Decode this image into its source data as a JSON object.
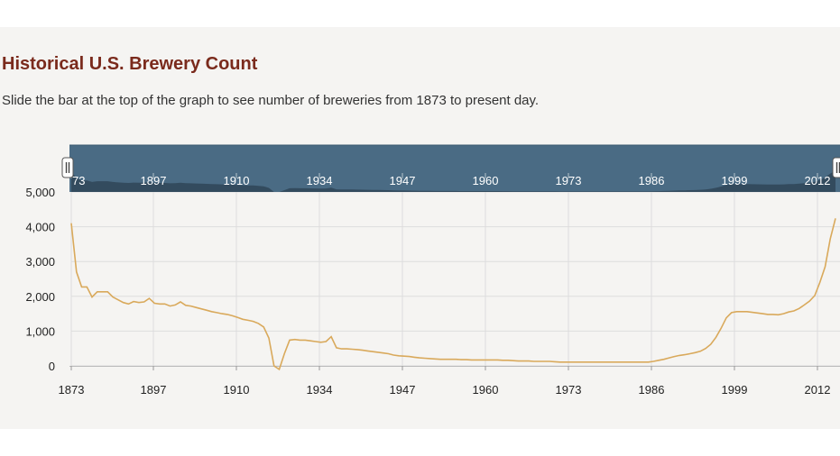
{
  "header": {
    "title": "Historical U.S. Brewery Count",
    "subtitle": "Slide the bar at the top of the graph to see number of breweries from 1873 to present day."
  },
  "navigator": {
    "tick_labels": [
      "73",
      "1897",
      "1910",
      "1934",
      "1947",
      "1960",
      "1973",
      "1986",
      "1999",
      "2012"
    ],
    "handle_icon": "grip-icon",
    "colors": {
      "band": "#4a6b84",
      "silhouette": "#334b5e"
    }
  },
  "chart_data": {
    "type": "line",
    "title": "Historical U.S. Brewery Count",
    "xlabel": "",
    "ylabel": "",
    "x_tick_labels": [
      "1873",
      "1897",
      "1910",
      "1934",
      "1947",
      "1960",
      "1973",
      "1986",
      "1999",
      "2012"
    ],
    "y_ticks": [
      0,
      1000,
      2000,
      3000,
      4000,
      5000
    ],
    "y_tick_labels": [
      "0",
      "1,000",
      "2,000",
      "3,000",
      "4,000",
      "5,000"
    ],
    "ylim": [
      0,
      5000
    ],
    "grid": true,
    "line_color": "#d9a95b",
    "series": [
      {
        "values": [
          4100,
          2700,
          2270,
          2270,
          1980,
          2130,
          2130,
          2130,
          1980,
          1900,
          1820,
          1780,
          1850,
          1820,
          1840,
          1940,
          1800,
          1780,
          1780,
          1720,
          1750,
          1840,
          1740,
          1720,
          1680,
          1640,
          1600,
          1560,
          1530,
          1500,
          1480,
          1440,
          1390,
          1340,
          1310,
          1280,
          1220,
          1120,
          800,
          0,
          -100,
          350,
          740,
          760,
          740,
          740,
          720,
          700,
          680,
          700,
          840,
          520,
          490,
          490,
          480,
          470,
          450,
          430,
          410,
          390,
          370,
          350,
          310,
          290,
          280,
          270,
          250,
          230,
          220,
          210,
          200,
          190,
          190,
          190,
          190,
          180,
          180,
          170,
          170,
          170,
          170,
          170,
          170,
          160,
          160,
          150,
          140,
          140,
          140,
          130,
          130,
          130,
          130,
          120,
          110,
          110,
          110,
          110,
          110,
          110,
          110,
          110,
          110,
          110,
          110,
          110,
          110,
          110,
          110,
          110,
          110,
          110,
          130,
          160,
          190,
          230,
          270,
          300,
          320,
          350,
          380,
          420,
          500,
          620,
          820,
          1080,
          1380,
          1530,
          1560,
          1560,
          1560,
          1540,
          1520,
          1500,
          1480,
          1480,
          1470,
          1500,
          1550,
          1580,
          1650,
          1750,
          1860,
          2020,
          2400,
          2850,
          3650,
          4240
        ]
      }
    ]
  }
}
